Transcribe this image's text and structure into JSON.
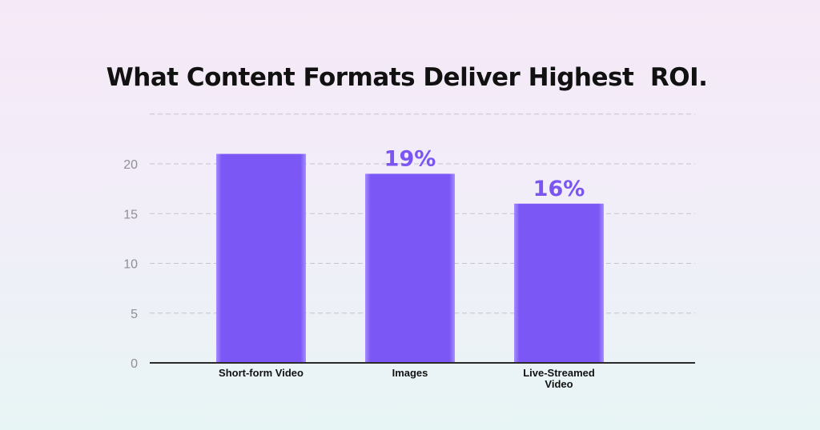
{
  "colors": {
    "bar": "#7b57f5",
    "bar_edge": "#a68cff",
    "data_label": "#7a55f2"
  },
  "chart_data": {
    "type": "bar",
    "title": "What Content Formats Deliver Highest  ROI.",
    "categories": [
      "Short-form Video",
      "Images",
      "Live-Streamed Video"
    ],
    "category_label_lines": [
      [
        "Short-form Video"
      ],
      [
        "Images"
      ],
      [
        "Live-Streamed",
        "Video"
      ]
    ],
    "values": [
      21,
      19,
      16
    ],
    "data_labels": [
      "",
      "19%",
      "16%"
    ],
    "xlabel": "",
    "ylabel": "",
    "ylim": [
      0,
      25
    ],
    "yticks": [
      0,
      5,
      10,
      15,
      20
    ],
    "grid": true,
    "legend": "none"
  }
}
